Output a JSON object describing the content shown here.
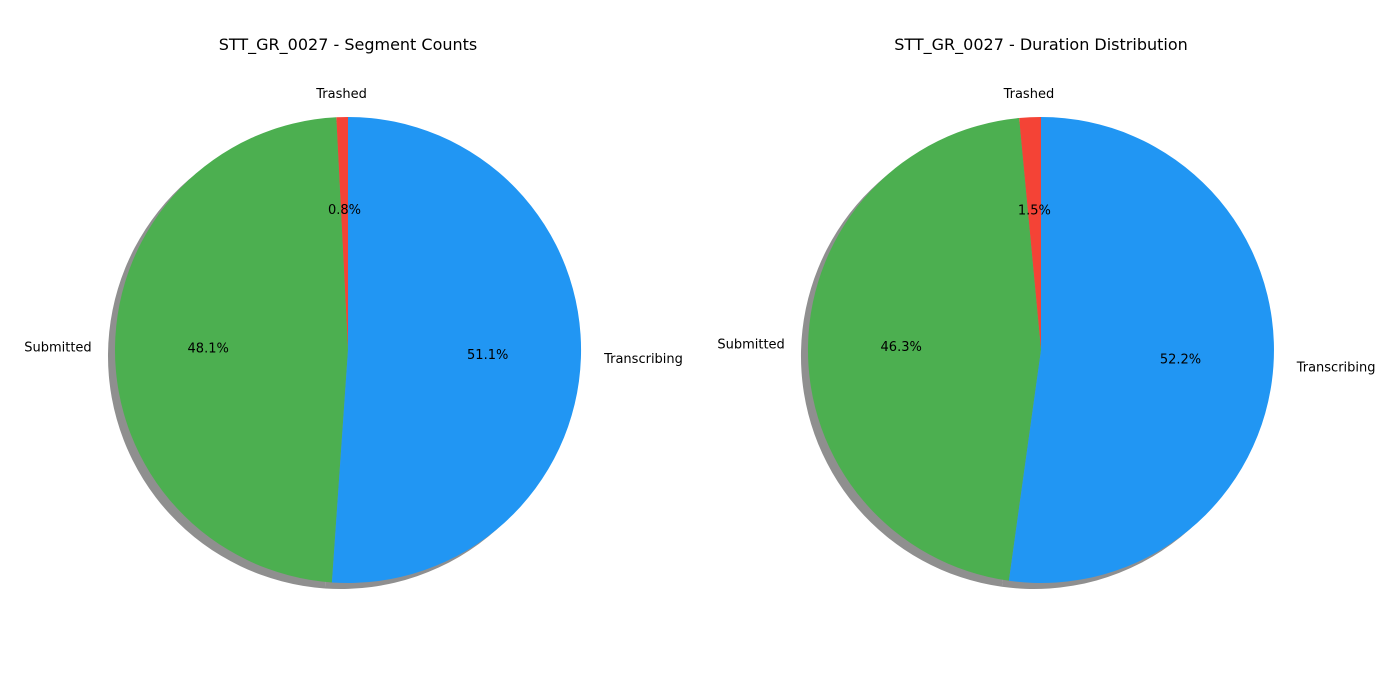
{
  "chart_data": [
    {
      "type": "pie",
      "title": "STT_GR_0027 - Segment Counts",
      "start_angle_deg": 90,
      "direction": "counterclockwise",
      "shadow": true,
      "slices": [
        {
          "label": "Trashed",
          "value": 0.8,
          "pct_label": "0.8%",
          "color": "#F44336"
        },
        {
          "label": "Submitted",
          "value": 48.1,
          "pct_label": "48.1%",
          "color": "#4CAF50"
        },
        {
          "label": "Transcribing",
          "value": 51.1,
          "pct_label": "51.1%",
          "color": "#2196F3"
        }
      ]
    },
    {
      "type": "pie",
      "title": "STT_GR_0027 - Duration Distribution",
      "start_angle_deg": 90,
      "direction": "counterclockwise",
      "shadow": true,
      "slices": [
        {
          "label": "Trashed",
          "value": 1.5,
          "pct_label": "1.5%",
          "color": "#F44336"
        },
        {
          "label": "Submitted",
          "value": 46.3,
          "pct_label": "46.3%",
          "color": "#4CAF50"
        },
        {
          "label": "Transcribing",
          "value": 52.2,
          "pct_label": "52.2%",
          "color": "#2196F3"
        }
      ]
    }
  ],
  "colors": {
    "background": "#ffffff",
    "shadow": "#5f5f5f",
    "text": "#000000"
  }
}
